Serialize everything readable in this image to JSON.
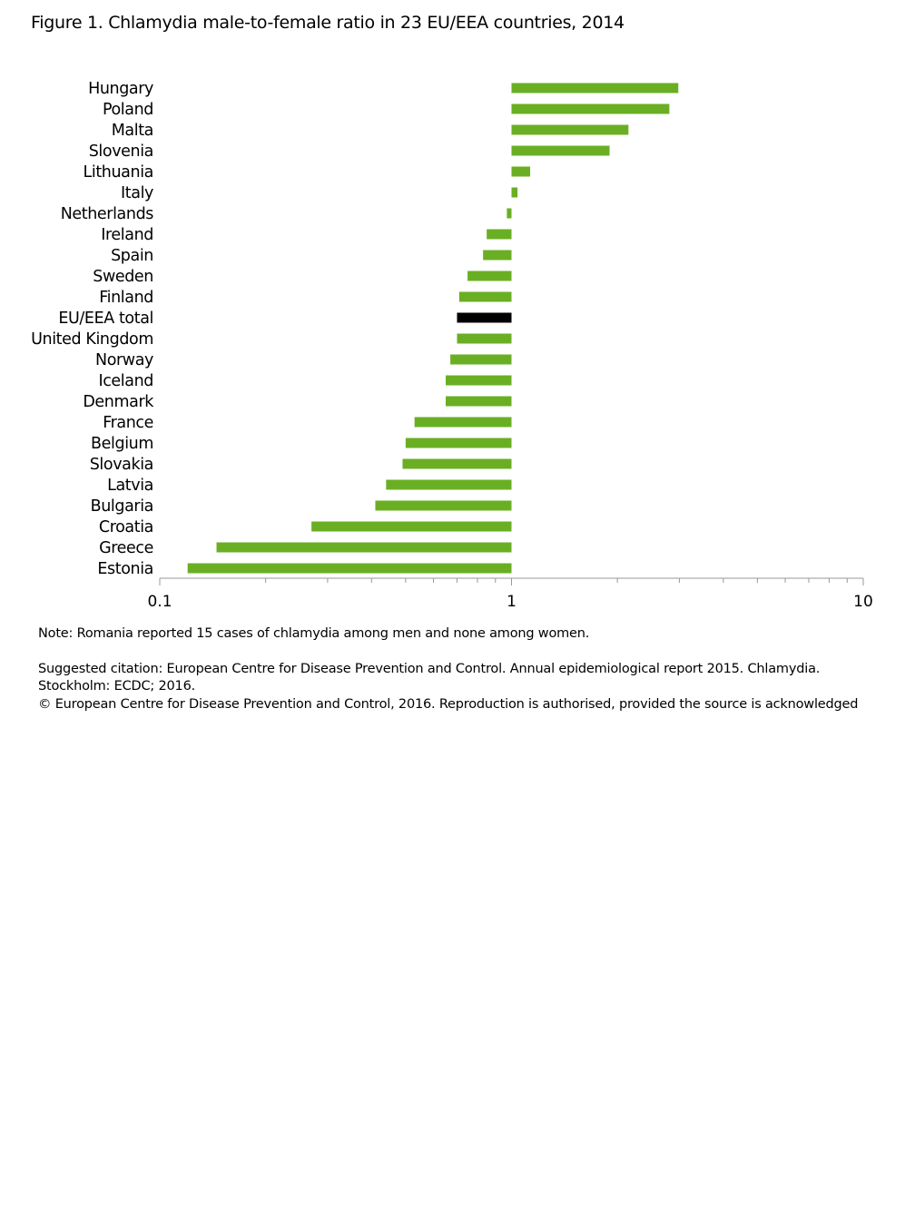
{
  "title": "Figure 1. Chlamydia male-to-female ratio in 23 EU/EEA countries, 2014",
  "chart_data": {
    "type": "bar",
    "orientation": "horizontal",
    "title": "Figure 1. Chlamydia male-to-female ratio in 23 EU/EEA countries, 2014",
    "xlabel": "",
    "ylabel": "",
    "xscale": "log",
    "xlim": [
      0.1,
      10
    ],
    "baseline": 1,
    "xticks": [
      "0.1",
      "1",
      "10"
    ],
    "grid": false,
    "colors": {
      "country": "#6aaf23",
      "total": "#000000"
    },
    "categories": [
      "Hungary",
      "Poland",
      "Malta",
      "Slovenia",
      "Lithuania",
      "Italy",
      "Netherlands",
      "Ireland",
      "Spain",
      "Sweden",
      "Finland",
      "EU/EEA total",
      "United Kingdom",
      "Norway",
      "Iceland",
      "Denmark",
      "France",
      "Belgium",
      "Slovakia",
      "Latvia",
      "Bulgaria",
      "Croatia",
      "Greece",
      "Estonia"
    ],
    "values": [
      2.98,
      2.81,
      2.15,
      1.9,
      1.13,
      1.04,
      0.97,
      0.85,
      0.83,
      0.75,
      0.71,
      0.7,
      0.7,
      0.67,
      0.65,
      0.65,
      0.53,
      0.5,
      0.49,
      0.44,
      0.41,
      0.27,
      0.145,
      0.12
    ],
    "highlight": "EU/EEA total"
  },
  "notes": {
    "note": "Note: Romania reported 15 cases of chlamydia among men and none among women.",
    "citation_1": "Suggested citation: European Centre for Disease Prevention and Control. Annual epidemiological report 2015. Chlamydia.",
    "citation_2": "Stockholm: ECDC; 2016.",
    "copyright": "© European Centre for Disease Prevention and Control, 2016. Reproduction is authorised, provided the source is acknowledged"
  }
}
